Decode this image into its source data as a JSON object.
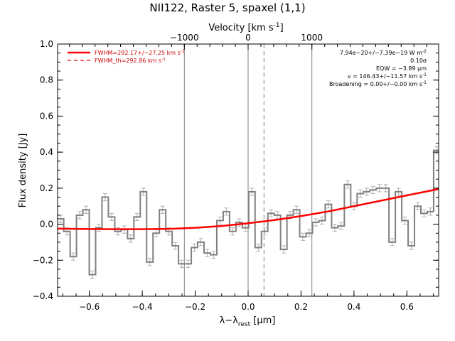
{
  "chart_data": {
    "type": "line",
    "title": "NII122, Raster 5, spaxel (1,1)",
    "xlabel_main": "λ−λ",
    "xlabel_sub": "rest",
    "xlabel_unit": " [μm]",
    "ylabel": "Flux density [Jy]",
    "top_axis_label": "Velocity [km s",
    "top_axis_label_sup": "-1",
    "top_axis_label_end": "]",
    "xlim": [
      -0.72,
      0.72
    ],
    "ylim": [
      -0.4,
      1.0
    ],
    "x_ticks": [
      -0.6,
      -0.4,
      -0.2,
      0.0,
      0.2,
      0.4,
      0.6
    ],
    "x_tick_labels": [
      "−0.6",
      "−0.4",
      "−0.2",
      "0.0",
      "0.2",
      "0.4",
      "0.6"
    ],
    "y_ticks": [
      -0.4,
      -0.2,
      0.0,
      0.2,
      0.4,
      0.6,
      0.8,
      1.0
    ],
    "y_tick_labels": [
      "−0.4",
      "−0.2",
      "0.0",
      "0.2",
      "0.4",
      "0.6",
      "0.8",
      "1.0"
    ],
    "top_ticks_x": [
      -0.241,
      0.0,
      0.241
    ],
    "top_tick_labels": [
      "−1000",
      "0",
      "1000"
    ],
    "spectrum": {
      "bin_width": 0.0241,
      "bin_centers": [
        -0.7088,
        -0.6847,
        -0.6606,
        -0.6365,
        -0.6124,
        -0.5883,
        -0.5642,
        -0.5401,
        -0.516,
        -0.4919,
        -0.4678,
        -0.4437,
        -0.4196,
        -0.3955,
        -0.3714,
        -0.3473,
        -0.3232,
        -0.2991,
        -0.275,
        -0.2509,
        -0.2268,
        -0.2027,
        -0.1786,
        -0.1545,
        -0.1304,
        -0.1063,
        -0.0822,
        -0.0581,
        -0.034,
        -0.0099,
        0.0142,
        0.0383,
        0.0624,
        0.0865,
        0.1106,
        0.1347,
        0.1588,
        0.1829,
        0.207,
        0.2311,
        0.2552,
        0.2793,
        0.3034,
        0.3275,
        0.3516,
        0.3757,
        0.3998,
        0.4239,
        0.448,
        0.4721,
        0.4962,
        0.5203,
        0.5444,
        0.5685,
        0.5926,
        0.6167,
        0.6408,
        0.6649,
        0.689,
        0.7131
      ],
      "values": [
        0.03,
        -0.04,
        -0.18,
        0.05,
        0.08,
        -0.28,
        -0.02,
        0.15,
        0.04,
        -0.04,
        -0.03,
        -0.08,
        0.04,
        0.18,
        -0.21,
        -0.05,
        0.08,
        -0.04,
        -0.12,
        -0.22,
        -0.22,
        -0.13,
        -0.1,
        -0.16,
        -0.17,
        0.02,
        0.07,
        -0.04,
        0.01,
        -0.02,
        0.18,
        -0.13,
        -0.04,
        0.06,
        0.05,
        -0.14,
        0.05,
        0.08,
        -0.07,
        -0.05,
        0.01,
        0.02,
        0.11,
        -0.02,
        -0.01,
        0.22,
        0.1,
        0.17,
        0.18,
        0.19,
        0.2,
        0.2,
        -0.1,
        0.18,
        0.02,
        -0.12,
        0.1,
        0.06,
        0.07,
        0.41
      ],
      "errors": [
        0.02,
        0.02,
        0.02,
        0.02,
        0.02,
        0.02,
        0.02,
        0.02,
        0.02,
        0.02,
        0.02,
        0.02,
        0.02,
        0.02,
        0.02,
        0.02,
        0.02,
        0.02,
        0.02,
        0.02,
        0.02,
        0.02,
        0.02,
        0.02,
        0.02,
        0.02,
        0.02,
        0.02,
        0.02,
        0.02,
        0.02,
        0.02,
        0.02,
        0.02,
        0.02,
        0.02,
        0.02,
        0.02,
        0.02,
        0.02,
        0.02,
        0.02,
        0.02,
        0.02,
        0.02,
        0.02,
        0.02,
        0.02,
        0.02,
        0.02,
        0.02,
        0.02,
        0.02,
        0.02,
        0.02,
        0.02,
        0.02,
        0.02,
        0.02,
        0.02
      ]
    },
    "fit_curve": {
      "x": [
        -0.72,
        -0.6,
        -0.5,
        -0.4,
        -0.3,
        -0.2,
        -0.1,
        0.0,
        0.1,
        0.2,
        0.3,
        0.4,
        0.5,
        0.6,
        0.72
      ],
      "y": [
        -0.025,
        -0.027,
        -0.028,
        -0.028,
        -0.026,
        -0.02,
        -0.01,
        0.005,
        0.023,
        0.045,
        0.07,
        0.1,
        0.13,
        0.16,
        0.195
      ]
    },
    "vertical_lines": {
      "solid": [
        -0.241,
        0.0,
        0.241
      ],
      "dashed": [
        0.06
      ]
    },
    "legend": [
      {
        "label": "FWHM=292.17+/−27.25 km s",
        "sup": "-1",
        "style": "solid"
      },
      {
        "label": "FWHM_th=292.86 km s",
        "sup": "-1",
        "style": "dashed"
      }
    ],
    "annotations": [
      {
        "text": "7.94e−20+/−7.39e−19 W m",
        "sup": "-2"
      },
      {
        "text": "0.10σ",
        "sup": ""
      },
      {
        "text": "EQW = −3.89 μm",
        "sup": ""
      },
      {
        "text": "v = 146.43+/−11.57 km s",
        "sup": "-1"
      },
      {
        "text": "Broadening = 0.00+/−0.00 km s",
        "sup": "-1"
      }
    ],
    "colors": {
      "spectrum": "#808080",
      "fit": "#ff0000",
      "legend_text": "#cc0000",
      "axes": "#000000",
      "vlines": "#808080"
    }
  }
}
